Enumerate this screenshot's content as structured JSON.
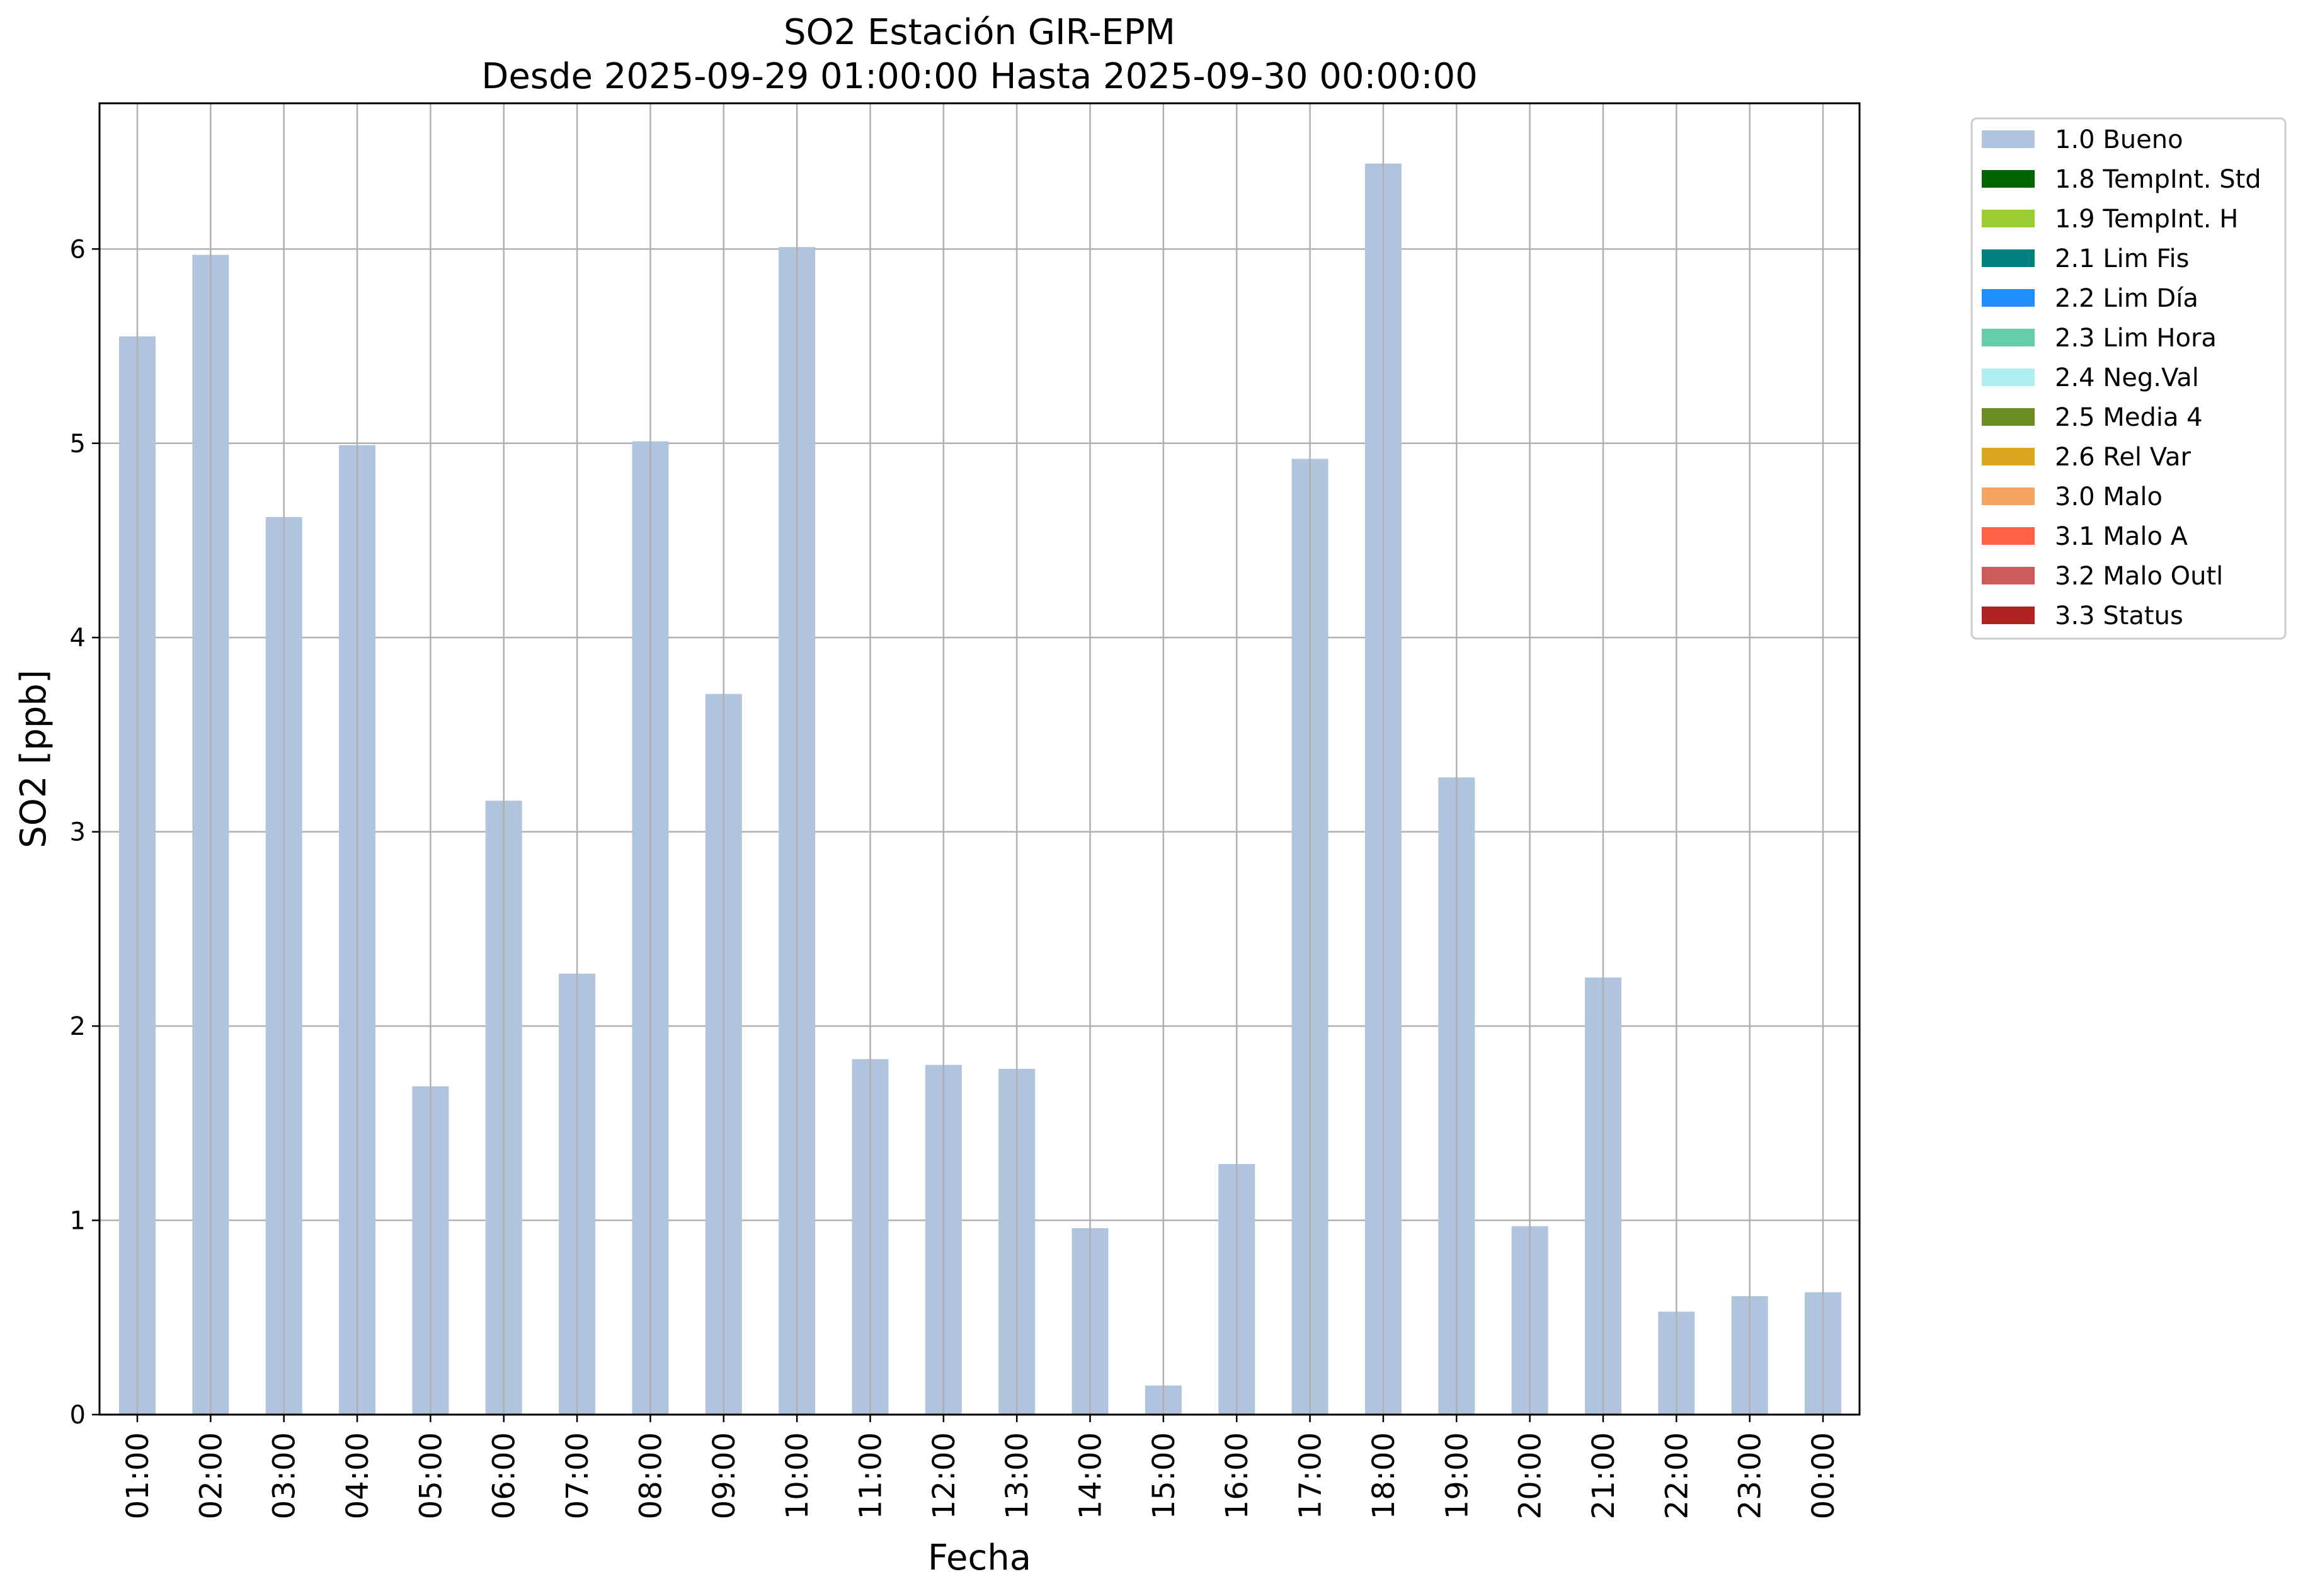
{
  "chart_data": {
    "type": "bar",
    "title": "SO2 Estación GIR-EPM",
    "subtitle": "Desde 2025-09-29 01:00:00 Hasta 2025-09-30 00:00:00",
    "xlabel": "Fecha",
    "ylabel": "SO2 [ppb]",
    "ylim": [
      0,
      6.75
    ],
    "yticks": [
      "0",
      "1",
      "2",
      "3",
      "4",
      "5",
      "6"
    ],
    "grid": true,
    "legend_position": "outside-top-right",
    "categories": [
      "01:00",
      "02:00",
      "03:00",
      "04:00",
      "05:00",
      "06:00",
      "07:00",
      "08:00",
      "09:00",
      "10:00",
      "11:00",
      "12:00",
      "13:00",
      "14:00",
      "15:00",
      "16:00",
      "17:00",
      "18:00",
      "19:00",
      "20:00",
      "21:00",
      "22:00",
      "23:00",
      "00:00"
    ],
    "series": [
      {
        "name": "1.0 Bueno",
        "color": "#b0c4de",
        "values": [
          5.55,
          5.97,
          4.62,
          4.99,
          1.69,
          3.16,
          2.27,
          5.01,
          3.71,
          6.01,
          1.83,
          1.8,
          1.78,
          0.96,
          0.15,
          1.29,
          4.92,
          6.44,
          3.28,
          0.97,
          2.25,
          0.53,
          0.61,
          0.63
        ]
      }
    ],
    "legend": [
      {
        "label": "1.0 Bueno",
        "color": "#b0c4de"
      },
      {
        "label": "1.8 TempInt. Std",
        "color": "#006400"
      },
      {
        "label": "1.9 TempInt. H",
        "color": "#9acd32"
      },
      {
        "label": "2.1 Lim Fis",
        "color": "#008080"
      },
      {
        "label": "2.2 Lim Día",
        "color": "#1e90ff"
      },
      {
        "label": "2.3 Lim Hora",
        "color": "#66cdaa"
      },
      {
        "label": "2.4 Neg.Val",
        "color": "#afeeee"
      },
      {
        "label": "2.5 Media 4",
        "color": "#6b8e23"
      },
      {
        "label": "2.6 Rel Var",
        "color": "#daa520"
      },
      {
        "label": "3.0 Malo",
        "color": "#f4a460"
      },
      {
        "label": "3.1 Malo A",
        "color": "#ff6347"
      },
      {
        "label": "3.2 Malo Outl",
        "color": "#cd5c5c"
      },
      {
        "label": "3.3 Status",
        "color": "#b22222"
      }
    ]
  }
}
